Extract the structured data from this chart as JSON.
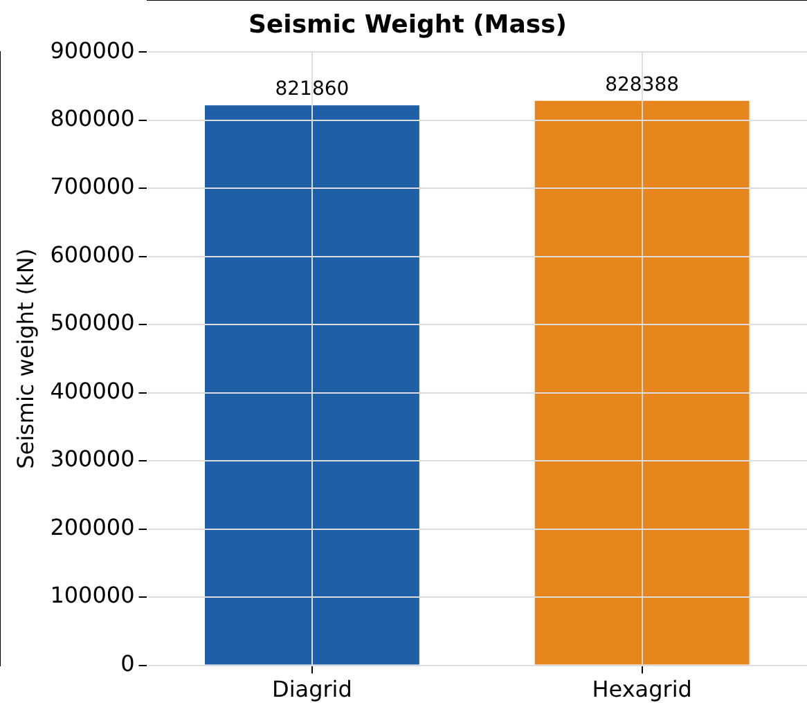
{
  "chart_data": {
    "type": "bar",
    "title": "Seismic Weight (Mass)",
    "ylabel": "Seismic weight (kN)",
    "categories": [
      "Diagrid",
      "Hexagrid"
    ],
    "values": [
      821860,
      828388
    ],
    "colors": [
      "#1f5fa8",
      "#e8861e"
    ],
    "ylim": [
      0,
      900000
    ],
    "yticks": [
      0,
      100000,
      200000,
      300000,
      400000,
      500000,
      600000,
      700000,
      800000,
      900000
    ],
    "grid": true,
    "data_labels": true
  }
}
